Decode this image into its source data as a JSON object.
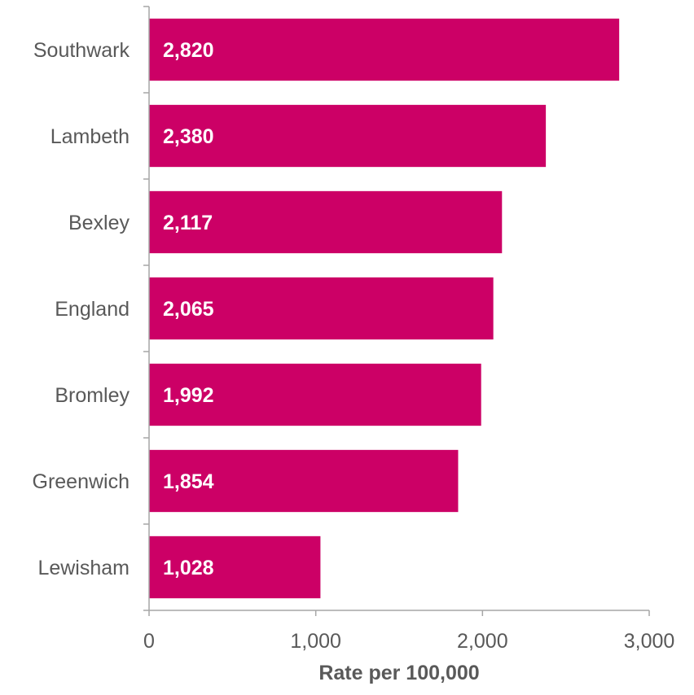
{
  "chart_data": {
    "type": "bar",
    "orientation": "horizontal",
    "title": "",
    "xlabel": "Rate per 100,000",
    "ylabel": "",
    "categories": [
      "Southwark",
      "Lambeth",
      "Bexley",
      "England",
      "Bromley",
      "Greenwich",
      "Lewisham"
    ],
    "values": [
      2820,
      2380,
      2117,
      2065,
      1992,
      1854,
      1028
    ],
    "value_labels": [
      "2,820",
      "2,380",
      "2,117",
      "2,065",
      "1,992",
      "1,854",
      "1,028"
    ],
    "xlim": [
      0,
      3000
    ],
    "x_ticks": [
      0,
      1000,
      2000,
      3000
    ],
    "x_tick_labels": [
      "0",
      "1,000",
      "2,000",
      "3,000"
    ],
    "grid": false,
    "legend": "none",
    "bar_color": "#CC0066",
    "axis_color": "#A6A6A6",
    "text_color": "#595959"
  }
}
